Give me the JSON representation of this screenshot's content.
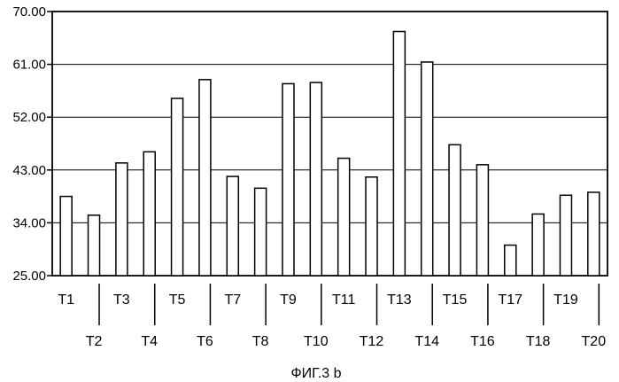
{
  "chart_data": {
    "type": "bar",
    "categories": [
      "T1",
      "T2",
      "T3",
      "T4",
      "T5",
      "T6",
      "T7",
      "T8",
      "T9",
      "T10",
      "T11",
      "T12",
      "T13",
      "T14",
      "T15",
      "T16",
      "T17",
      "T18",
      "T19",
      "T20"
    ],
    "values": [
      38.5,
      35.3,
      44.2,
      46.1,
      55.2,
      58.4,
      41.9,
      39.9,
      57.7,
      57.9,
      45.0,
      41.8,
      66.6,
      61.4,
      47.3,
      43.9,
      30.2,
      35.5,
      38.7,
      39.2
    ],
    "title": "",
    "xlabel": "",
    "ylabel": "",
    "ylim": [
      25,
      70
    ],
    "yticks": [
      "25.00",
      "34.00",
      "43.00",
      "52.00",
      "61.00",
      "70.00"
    ],
    "grid": true,
    "bar_color": "#ffffff",
    "line_color": "#000000"
  },
  "caption": "ФИГ.3 b"
}
